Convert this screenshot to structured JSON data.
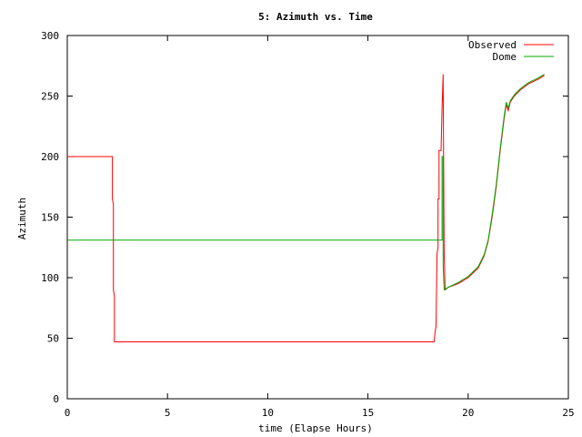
{
  "chart_data": {
    "type": "line",
    "title": "5: Azimuth vs. Time",
    "xlabel": "time (Elapse Hours)",
    "ylabel": "Azimuth",
    "xlim": [
      0,
      25
    ],
    "ylim": [
      0,
      300
    ],
    "xticks": [
      0,
      5,
      10,
      15,
      20,
      25
    ],
    "yticks": [
      0,
      50,
      100,
      150,
      200,
      250,
      300
    ],
    "grid": false,
    "legend_position": "top-right",
    "series": [
      {
        "name": "Observed",
        "color": "#ff0000",
        "points": [
          [
            0,
            200
          ],
          [
            2.25,
            200
          ],
          [
            2.25,
            165
          ],
          [
            2.3,
            160
          ],
          [
            2.3,
            90
          ],
          [
            2.35,
            85
          ],
          [
            2.35,
            47
          ],
          [
            18.3,
            47
          ],
          [
            18.35,
            55
          ],
          [
            18.4,
            60
          ],
          [
            18.45,
            120
          ],
          [
            18.5,
            125
          ],
          [
            18.5,
            165
          ],
          [
            18.55,
            165
          ],
          [
            18.55,
            205
          ],
          [
            18.65,
            205
          ],
          [
            18.7,
            240
          ],
          [
            18.75,
            268
          ],
          [
            18.8,
            120
          ],
          [
            18.85,
            90
          ],
          [
            19,
            92
          ],
          [
            19.5,
            95
          ],
          [
            20,
            100
          ],
          [
            20.5,
            108
          ],
          [
            20.8,
            118
          ],
          [
            21,
            130
          ],
          [
            21.2,
            150
          ],
          [
            21.4,
            175
          ],
          [
            21.6,
            205
          ],
          [
            21.8,
            232
          ],
          [
            21.9,
            243
          ],
          [
            22,
            238
          ],
          [
            22.1,
            245
          ],
          [
            22.3,
            250
          ],
          [
            22.6,
            255
          ],
          [
            23,
            260
          ],
          [
            23.5,
            264
          ],
          [
            23.8,
            267
          ]
        ]
      },
      {
        "name": "Dome",
        "color": "#00aa00",
        "points": [
          [
            0,
            131
          ],
          [
            18.7,
            131
          ],
          [
            18.7,
            200
          ],
          [
            18.75,
            200
          ],
          [
            18.75,
            110
          ],
          [
            18.8,
            90
          ],
          [
            19,
            92
          ],
          [
            19.5,
            96
          ],
          [
            20,
            101
          ],
          [
            20.5,
            109
          ],
          [
            20.8,
            119
          ],
          [
            21,
            131
          ],
          [
            21.2,
            152
          ],
          [
            21.4,
            177
          ],
          [
            21.6,
            207
          ],
          [
            21.8,
            234
          ],
          [
            21.9,
            245
          ],
          [
            22,
            240
          ],
          [
            22.1,
            246
          ],
          [
            22.3,
            251
          ],
          [
            22.6,
            256
          ],
          [
            23,
            261
          ],
          [
            23.5,
            265
          ],
          [
            23.8,
            268
          ]
        ]
      }
    ]
  }
}
